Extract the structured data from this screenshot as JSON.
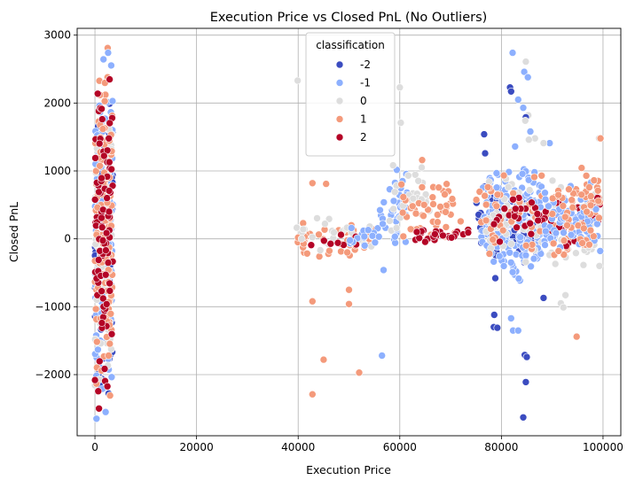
{
  "chart_data": {
    "type": "scatter",
    "title": "Execution Price vs Closed PnL (No Outliers)",
    "xlabel": "Execution Price",
    "ylabel": "Closed PnL",
    "xlim": [
      -3500,
      103500
    ],
    "ylim": [
      -2900,
      3100
    ],
    "x_ticks": [
      0,
      20000,
      40000,
      60000,
      80000,
      100000
    ],
    "y_ticks": [
      -2000,
      -1000,
      0,
      1000,
      2000,
      3000
    ],
    "x_tick_labels": [
      "0",
      "20000",
      "40000",
      "60000",
      "80000",
      "100000"
    ],
    "y_tick_labels": [
      "−2000",
      "−1000",
      "0",
      "1000",
      "2000",
      "3000"
    ],
    "grid": true,
    "legend": {
      "title": "classification",
      "placement": "upper center",
      "entries": [
        {
          "label": "-2",
          "color": "#3b4cc0"
        },
        {
          "label": "-1",
          "color": "#8db0fe"
        },
        {
          "label": "0",
          "color": "#dddddd"
        },
        {
          "label": "1",
          "color": "#f49a7b"
        },
        {
          "label": "2",
          "color": "#b40426"
        }
      ]
    },
    "clusters": [
      {
        "series": "-2",
        "x_range": [
          0,
          3500
        ],
        "y_range": [
          -2650,
          2650
        ],
        "count": 110
      },
      {
        "series": "-1",
        "x_range": [
          0,
          3500
        ],
        "y_range": [
          -2550,
          2750
        ],
        "count": 120
      },
      {
        "series": "0",
        "x_range": [
          0,
          3500
        ],
        "y_range": [
          -2300,
          2000
        ],
        "count": 60
      },
      {
        "series": "1",
        "x_range": [
          0,
          3500
        ],
        "y_range": [
          -2450,
          2800
        ],
        "count": 120
      },
      {
        "series": "2",
        "x_range": [
          0,
          3500
        ],
        "y_range": [
          -2500,
          2650
        ],
        "count": 90
      },
      {
        "series": "1",
        "x_range": [
          39000,
          55000
        ],
        "y_range": [
          -300,
          300
        ],
        "count": 45
      },
      {
        "series": "0",
        "x_range": [
          39000,
          55000
        ],
        "y_range": [
          -200,
          350
        ],
        "count": 25
      },
      {
        "series": "2",
        "x_range": [
          41000,
          52000
        ],
        "y_range": [
          -150,
          150
        ],
        "count": 10
      },
      {
        "series": "-1",
        "x_range": [
          50000,
          60000
        ],
        "y_range": [
          -150,
          200
        ],
        "count": 20
      },
      {
        "series": "-1",
        "x_range": [
          56000,
          62000
        ],
        "y_range": [
          -100,
          1100
        ],
        "count": 35
      },
      {
        "series": "0",
        "x_range": [
          58000,
          66000
        ],
        "y_range": [
          -50,
          1200
        ],
        "count": 25
      },
      {
        "series": "1",
        "x_range": [
          60000,
          72000
        ],
        "y_range": [
          -50,
          900
        ],
        "count": 50
      },
      {
        "series": "2",
        "x_range": [
          63000,
          74000
        ],
        "y_range": [
          -50,
          150
        ],
        "count": 25
      },
      {
        "series": "-2",
        "x_range": [
          75000,
          87000
        ],
        "y_range": [
          -400,
          800
        ],
        "count": 90
      },
      {
        "series": "-1",
        "x_range": [
          76000,
          88000
        ],
        "y_range": [
          -700,
          1100
        ],
        "count": 180
      },
      {
        "series": "0",
        "x_range": [
          77000,
          99500
        ],
        "y_range": [
          -500,
          1000
        ],
        "count": 80
      },
      {
        "series": "1",
        "x_range": [
          75000,
          99500
        ],
        "y_range": [
          -300,
          1000
        ],
        "count": 80
      },
      {
        "series": "2",
        "x_range": [
          78000,
          99500
        ],
        "y_range": [
          -150,
          700
        ],
        "count": 60
      },
      {
        "series": "-1",
        "x_range": [
          88000,
          99500
        ],
        "y_range": [
          -250,
          900
        ],
        "count": 70
      },
      {
        "series": "1",
        "x_range": [
          90000,
          99500
        ],
        "y_range": [
          -350,
          1100
        ],
        "count": 50
      }
    ],
    "points": [
      {
        "series": "-1",
        "x": 82200,
        "y": 2740
      },
      {
        "series": "0",
        "x": 84800,
        "y": 2610
      },
      {
        "series": "-1",
        "x": 84500,
        "y": 2460
      },
      {
        "series": "-1",
        "x": 85200,
        "y": 2380
      },
      {
        "series": "-2",
        "x": 81700,
        "y": 2230
      },
      {
        "series": "-2",
        "x": 81900,
        "y": 2170
      },
      {
        "series": "-1",
        "x": 83300,
        "y": 2050
      },
      {
        "series": "-1",
        "x": 84300,
        "y": 1930
      },
      {
        "series": "0",
        "x": 85300,
        "y": 1820
      },
      {
        "series": "-2",
        "x": 84800,
        "y": 1790
      },
      {
        "series": "0",
        "x": 84700,
        "y": 1740
      },
      {
        "series": "-1",
        "x": 85700,
        "y": 1580
      },
      {
        "series": "-2",
        "x": 76600,
        "y": 1540
      },
      {
        "series": "0",
        "x": 86600,
        "y": 1480
      },
      {
        "series": "0",
        "x": 85400,
        "y": 1460
      },
      {
        "series": "-1",
        "x": 89500,
        "y": 1410
      },
      {
        "series": "0",
        "x": 88300,
        "y": 1410
      },
      {
        "series": "-1",
        "x": 82700,
        "y": 1360
      },
      {
        "series": "-2",
        "x": 76800,
        "y": 1260
      },
      {
        "series": "0",
        "x": 99200,
        "y": 1480
      },
      {
        "series": "1",
        "x": 99500,
        "y": 1480
      },
      {
        "series": "0",
        "x": 60000,
        "y": 2230
      },
      {
        "series": "0",
        "x": 39900,
        "y": 2330
      },
      {
        "series": "0",
        "x": 60200,
        "y": 1710
      },
      {
        "series": "1",
        "x": 64400,
        "y": 1160
      },
      {
        "series": "1",
        "x": 42800,
        "y": 820
      },
      {
        "series": "1",
        "x": 45500,
        "y": 810
      },
      {
        "series": "1",
        "x": 42800,
        "y": -920
      },
      {
        "series": "1",
        "x": 45000,
        "y": -1780
      },
      {
        "series": "1",
        "x": 42800,
        "y": -2290
      },
      {
        "series": "1",
        "x": 52000,
        "y": -1970
      },
      {
        "series": "1",
        "x": 50000,
        "y": -960
      },
      {
        "series": "1",
        "x": 50000,
        "y": -750
      },
      {
        "series": "-1",
        "x": 56500,
        "y": -1720
      },
      {
        "series": "-1",
        "x": 56800,
        "y": -460
      },
      {
        "series": "-2",
        "x": 78500,
        "y": -1300
      },
      {
        "series": "-2",
        "x": 79200,
        "y": -1310
      },
      {
        "series": "-2",
        "x": 78600,
        "y": -1120
      },
      {
        "series": "-2",
        "x": 78800,
        "y": -580
      },
      {
        "series": "-1",
        "x": 81900,
        "y": -1170
      },
      {
        "series": "-1",
        "x": 82300,
        "y": -1350
      },
      {
        "series": "-1",
        "x": 83300,
        "y": -1350
      },
      {
        "series": "-2",
        "x": 84600,
        "y": -1710
      },
      {
        "series": "-2",
        "x": 85000,
        "y": -1740
      },
      {
        "series": "-2",
        "x": 84800,
        "y": -2110
      },
      {
        "series": "-2",
        "x": 84300,
        "y": -2630
      },
      {
        "series": "-2",
        "x": 88300,
        "y": -870
      },
      {
        "series": "0",
        "x": 91700,
        "y": -950
      },
      {
        "series": "0",
        "x": 92200,
        "y": -1010
      },
      {
        "series": "0",
        "x": 92600,
        "y": -830
      },
      {
        "series": "1",
        "x": 94800,
        "y": -1440
      },
      {
        "series": "0",
        "x": 99300,
        "y": -400
      },
      {
        "series": "1",
        "x": 2500,
        "y": 2810
      },
      {
        "series": "-1",
        "x": 2600,
        "y": 2740
      },
      {
        "series": "1",
        "x": 2700,
        "y": -1720
      },
      {
        "series": "-1",
        "x": 300,
        "y": -2650
      },
      {
        "series": "2",
        "x": 800,
        "y": -2500
      },
      {
        "series": "-1",
        "x": 2100,
        "y": -2550
      }
    ]
  }
}
